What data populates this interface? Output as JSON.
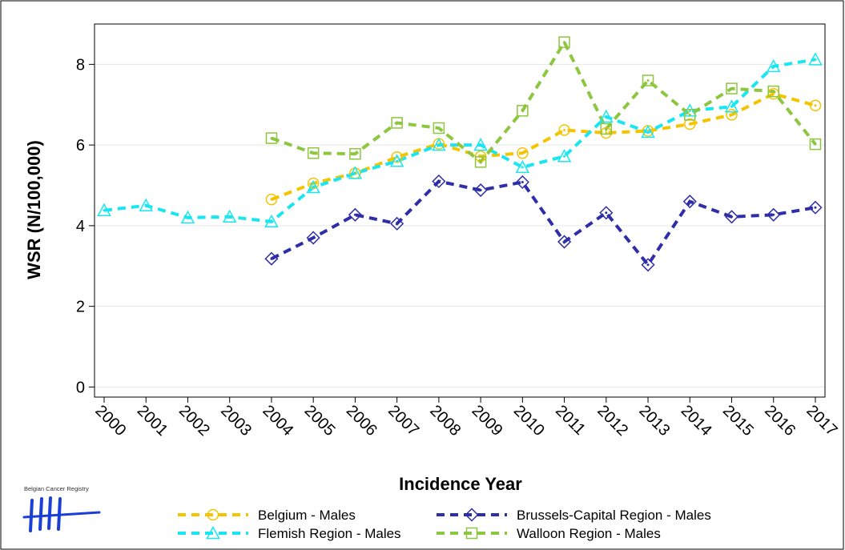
{
  "chart_data": {
    "type": "line",
    "logo_text": "Belgian Cancer Registry",
    "xlabel": "Incidence Year",
    "ylabel": "WSR (N/100,000)",
    "x": [
      2000,
      2001,
      2002,
      2003,
      2004,
      2005,
      2006,
      2007,
      2008,
      2009,
      2010,
      2011,
      2012,
      2013,
      2014,
      2015,
      2016,
      2017
    ],
    "xlim": [
      1999.77,
      2017.23
    ],
    "xticks": [
      2000,
      2001,
      2002,
      2003,
      2004,
      2005,
      2006,
      2007,
      2008,
      2009,
      2010,
      2011,
      2012,
      2013,
      2014,
      2015,
      2016,
      2017
    ],
    "ylim": [
      -0.25,
      9
    ],
    "yticks": [
      0,
      2,
      4,
      6,
      8
    ],
    "grid": true,
    "series": [
      {
        "name": "Belgium - Males",
        "color": "#f5c400",
        "marker": "circle",
        "values": [
          null,
          null,
          null,
          null,
          4.65,
          5.05,
          5.3,
          5.7,
          6.03,
          5.72,
          5.8,
          6.37,
          6.3,
          6.35,
          6.52,
          6.75,
          7.27,
          6.98
        ]
      },
      {
        "name": "Brussels-Capital Region - Males",
        "color": "#2e2fa8",
        "marker": "diamond",
        "values": [
          null,
          null,
          null,
          null,
          3.18,
          3.7,
          4.27,
          4.05,
          5.1,
          4.88,
          5.08,
          3.6,
          4.32,
          3.03,
          4.6,
          4.22,
          4.27,
          4.45
        ]
      },
      {
        "name": "Flemish Region - Males",
        "color": "#19e6f0",
        "marker": "triangle",
        "values": [
          4.38,
          4.5,
          4.2,
          4.22,
          4.1,
          4.95,
          5.3,
          5.6,
          6.0,
          6.0,
          5.45,
          5.72,
          6.7,
          6.32,
          6.85,
          6.95,
          7.95,
          8.12
        ]
      },
      {
        "name": "Walloon Region - Males",
        "color": "#8dc63f",
        "marker": "square",
        "values": [
          null,
          null,
          null,
          null,
          6.17,
          5.8,
          5.78,
          6.55,
          6.42,
          5.58,
          6.85,
          8.55,
          6.4,
          7.6,
          6.75,
          7.4,
          7.33,
          6.02
        ]
      }
    ]
  }
}
